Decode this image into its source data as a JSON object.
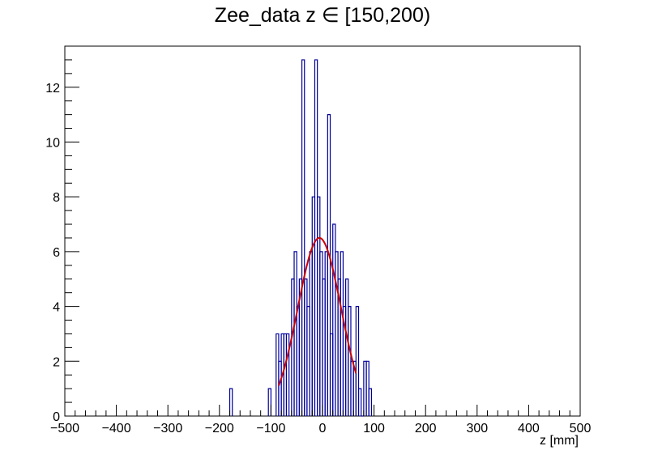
{
  "chart_data": {
    "type": "bar",
    "style": "step-histogram",
    "title": "Zee_data z  ∈ [150,200)",
    "xlabel": "z [mm]",
    "ylabel": "",
    "xlim": [
      -500,
      500
    ],
    "ylim": [
      0,
      13.5
    ],
    "grid": false,
    "bin_width": 5,
    "x_ticks": [
      -500,
      -400,
      -300,
      -200,
      -100,
      0,
      100,
      200,
      300,
      400,
      500
    ],
    "x_tick_labels": [
      "−500",
      "−400",
      "−300",
      "−200",
      "−100",
      "0",
      "100",
      "200",
      "300",
      "400",
      "500"
    ],
    "y_ticks": [
      0,
      2,
      4,
      6,
      8,
      10,
      12
    ],
    "y_tick_labels": [
      "0",
      "2",
      "4",
      "6",
      "8",
      "10",
      "12"
    ],
    "series": [
      {
        "kind": "histogram",
        "color": "#000099",
        "bins": [
          {
            "x": -180,
            "y": 1
          },
          {
            "x": -105,
            "y": 1
          },
          {
            "x": -90,
            "y": 3
          },
          {
            "x": -85,
            "y": 2
          },
          {
            "x": -80,
            "y": 3
          },
          {
            "x": -75,
            "y": 3
          },
          {
            "x": -70,
            "y": 3
          },
          {
            "x": -60,
            "y": 5
          },
          {
            "x": -55,
            "y": 6
          },
          {
            "x": -50,
            "y": 4
          },
          {
            "x": -45,
            "y": 5
          },
          {
            "x": -40,
            "y": 13
          },
          {
            "x": -35,
            "y": 5
          },
          {
            "x": -30,
            "y": 4
          },
          {
            "x": -25,
            "y": 6
          },
          {
            "x": -20,
            "y": 8
          },
          {
            "x": -15,
            "y": 13
          },
          {
            "x": -10,
            "y": 8
          },
          {
            "x": -5,
            "y": 6
          },
          {
            "x": 0,
            "y": 5
          },
          {
            "x": 5,
            "y": 6
          },
          {
            "x": 10,
            "y": 11
          },
          {
            "x": 15,
            "y": 3
          },
          {
            "x": 20,
            "y": 7
          },
          {
            "x": 25,
            "y": 6
          },
          {
            "x": 30,
            "y": 5
          },
          {
            "x": 35,
            "y": 6
          },
          {
            "x": 40,
            "y": 4
          },
          {
            "x": 45,
            "y": 5
          },
          {
            "x": 50,
            "y": 4
          },
          {
            "x": 55,
            "y": 2
          },
          {
            "x": 60,
            "y": 2
          },
          {
            "x": 65,
            "y": 4
          },
          {
            "x": 70,
            "y": 1
          },
          {
            "x": 75,
            "y": 0
          },
          {
            "x": 80,
            "y": 2
          },
          {
            "x": 85,
            "y": 2
          },
          {
            "x": 90,
            "y": 1
          }
        ]
      },
      {
        "kind": "fit-curve",
        "color": "#cc0000",
        "shape": "gaussian",
        "amplitude": 6.5,
        "mean": -6,
        "sigma": 42,
        "x_range": [
          -85,
          65
        ]
      }
    ]
  }
}
